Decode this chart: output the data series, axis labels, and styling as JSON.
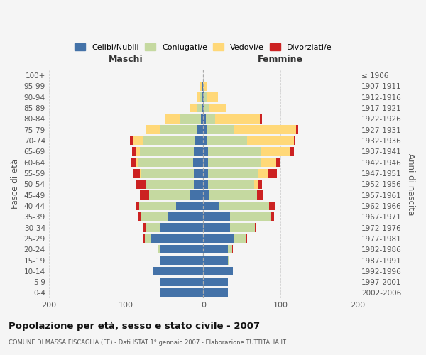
{
  "age_groups": [
    "0-4",
    "5-9",
    "10-14",
    "15-19",
    "20-24",
    "25-29",
    "30-34",
    "35-39",
    "40-44",
    "45-49",
    "50-54",
    "55-59",
    "60-64",
    "65-69",
    "70-74",
    "75-79",
    "80-84",
    "85-89",
    "90-94",
    "95-99",
    "100+"
  ],
  "birth_years": [
    "2002-2006",
    "1997-2001",
    "1992-1996",
    "1987-1991",
    "1982-1986",
    "1977-1981",
    "1972-1976",
    "1967-1971",
    "1962-1966",
    "1957-1961",
    "1952-1956",
    "1947-1951",
    "1942-1946",
    "1937-1941",
    "1932-1936",
    "1927-1931",
    "1922-1926",
    "1917-1921",
    "1912-1916",
    "1907-1911",
    "≤ 1906"
  ],
  "male_celibi": [
    55,
    55,
    65,
    55,
    55,
    68,
    55,
    45,
    35,
    18,
    12,
    12,
    13,
    12,
    10,
    8,
    3,
    2,
    1,
    1,
    0
  ],
  "male_coniugati": [
    0,
    0,
    0,
    1,
    3,
    8,
    20,
    35,
    48,
    52,
    62,
    68,
    72,
    70,
    68,
    48,
    28,
    7,
    3,
    1,
    0
  ],
  "male_vedovi": [
    0,
    0,
    0,
    0,
    0,
    0,
    0,
    0,
    0,
    0,
    1,
    2,
    3,
    5,
    12,
    18,
    18,
    8,
    5,
    2,
    0
  ],
  "male_divorziati": [
    0,
    0,
    0,
    0,
    1,
    2,
    3,
    5,
    5,
    12,
    12,
    8,
    5,
    5,
    5,
    1,
    1,
    0,
    0,
    0,
    0
  ],
  "female_nubili": [
    32,
    32,
    38,
    32,
    32,
    40,
    35,
    35,
    20,
    8,
    6,
    6,
    6,
    6,
    5,
    5,
    3,
    2,
    2,
    0,
    0
  ],
  "female_coniugate": [
    0,
    0,
    0,
    2,
    5,
    15,
    32,
    52,
    65,
    62,
    60,
    65,
    68,
    68,
    52,
    35,
    12,
    5,
    2,
    0,
    0
  ],
  "female_vedove": [
    0,
    0,
    0,
    0,
    0,
    0,
    0,
    0,
    0,
    0,
    5,
    12,
    20,
    38,
    60,
    80,
    58,
    22,
    15,
    5,
    0
  ],
  "female_divorziate": [
    0,
    0,
    0,
    0,
    1,
    2,
    2,
    5,
    8,
    8,
    5,
    12,
    5,
    5,
    2,
    3,
    3,
    1,
    0,
    0,
    0
  ],
  "color_celibi": "#4472a8",
  "color_coniugati": "#c5d9a0",
  "color_vedovi": "#ffd878",
  "color_divorziati": "#cc2222",
  "title": "Popolazione per età, sesso e stato civile - 2007",
  "subtitle": "COMUNE DI MASSA FISCAGLIA (FE) - Dati ISTAT 1° gennaio 2007 - Elaborazione TUTTITALIA.IT",
  "label_maschi": "Maschi",
  "label_femmine": "Femmine",
  "label_fasce": "Fasce di età",
  "label_anni": "Anni di nascita",
  "legend_celibi": "Celibi/Nubili",
  "legend_coniugati": "Coniugati/e",
  "legend_vedovi": "Vedovi/e",
  "legend_divorziati": "Divorziati/e",
  "xlim": 200,
  "bg_color": "#f5f5f5",
  "grid_color": "#cccccc"
}
